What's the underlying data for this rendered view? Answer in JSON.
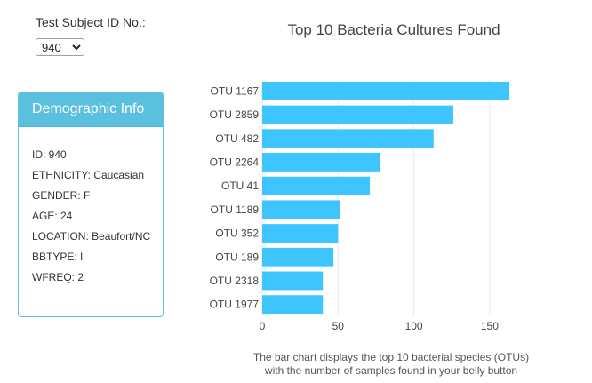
{
  "selector": {
    "label": "Test Subject ID No.:",
    "selected": "940"
  },
  "demographics": {
    "title": "Demographic Info",
    "rows": [
      "ID: 940",
      "ETHNICITY: Caucasian",
      "GENDER: F",
      "AGE: 24",
      "LOCATION: Beaufort/NC",
      "BBTYPE: I",
      "WFREQ: 2"
    ]
  },
  "chart_data": {
    "type": "bar",
    "orientation": "horizontal",
    "title": "Top 10 Bacteria Cultures Found",
    "categories": [
      "OTU 1167",
      "OTU 2859",
      "OTU 482",
      "OTU 2264",
      "OTU 41",
      "OTU 1189",
      "OTU 352",
      "OTU 189",
      "OTU 2318",
      "OTU 1977"
    ],
    "values": [
      163,
      126,
      113,
      78,
      71,
      51,
      50,
      47,
      40,
      40
    ],
    "xlim": [
      0,
      170
    ],
    "xticks": [
      0,
      50,
      100,
      150
    ],
    "bar_color": "#3ec5ff",
    "grid": true
  },
  "caption": {
    "line1": "The bar chart displays the top 10 bacterial species (OTUs)",
    "line2": "with the number of samples found in your belly button"
  }
}
